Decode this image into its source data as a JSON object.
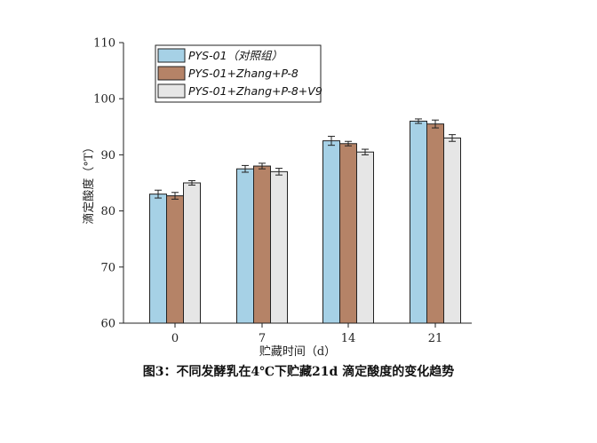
{
  "chart_data": {
    "type": "bar",
    "categories": [
      "0",
      "7",
      "14",
      "21"
    ],
    "series": [
      {
        "name": "PYS-01（对照组）",
        "values": [
          83.0,
          87.5,
          92.5,
          96.0
        ],
        "errors": [
          0.7,
          0.6,
          0.8,
          0.4
        ],
        "color": "#a6d1e6"
      },
      {
        "name": "PYS-01+Zhang+P-8",
        "values": [
          82.7,
          88.0,
          92.0,
          95.5
        ],
        "errors": [
          0.6,
          0.5,
          0.4,
          0.7
        ],
        "color": "#b58367"
      },
      {
        "name": "PYS-01+Zhang+P-8+V9",
        "values": [
          85.0,
          87.0,
          90.5,
          93.0
        ],
        "errors": [
          0.4,
          0.6,
          0.5,
          0.6
        ],
        "color": "#e6e6e6"
      }
    ],
    "xlabel": "贮藏时间（d）",
    "ylabel": "滴定酸度（°T）",
    "ylim": [
      60,
      110
    ],
    "yticks": [
      60,
      70,
      80,
      90,
      100,
      110
    ],
    "grid": false,
    "legend_position": "top-left"
  },
  "caption": "图3：不同发酵乳在4℃下贮藏21d 滴定酸度的变化趋势"
}
